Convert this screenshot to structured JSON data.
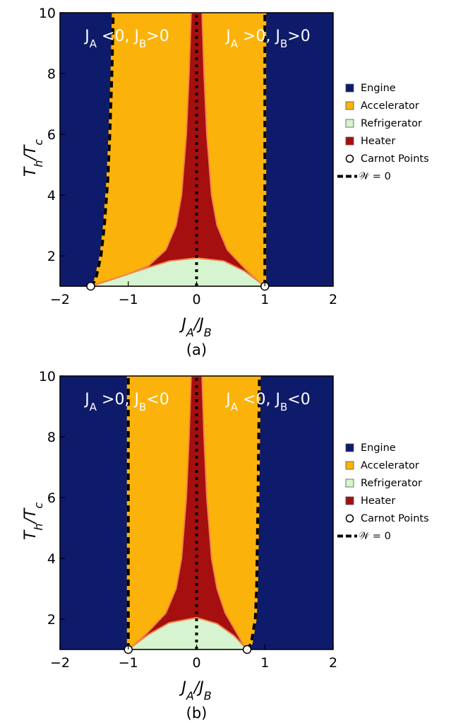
{
  "colors": {
    "engine": "#0e1b6b",
    "accelerator": "#fbb20a",
    "refrigerator": "#d6f4cf",
    "heater": "#a50f0f",
    "boundary": "#f0854a"
  },
  "chart_data": [
    {
      "type": "area",
      "panel_label": "(a)",
      "xlabel": "J_A/J_B",
      "ylabel": "T_h/T_c",
      "xlim": [
        -2,
        2
      ],
      "ylim": [
        1,
        10
      ],
      "x_ticks": [
        "−2",
        "−1",
        "0",
        "1",
        "2"
      ],
      "y_ticks": [
        "2",
        "4",
        "6",
        "8",
        "10"
      ],
      "region_labels": {
        "left": [
          "J",
          "A",
          " <0, J",
          "B",
          ">0"
        ],
        "right": [
          "J",
          "A",
          " >0, J",
          "B",
          ">0"
        ]
      },
      "legend": {
        "placement": "right",
        "entries": [
          "Engine",
          "Accelerator",
          "Refrigerator",
          "Heater",
          "Carnot Points",
          "𝒲 = 0"
        ]
      },
      "carnot_points": [
        [
          -1.55,
          1
        ],
        [
          1.0,
          1
        ]
      ],
      "work_zero_left": [
        [
          -1.55,
          1.0
        ],
        [
          -1.48,
          1.2
        ],
        [
          -1.4,
          2.0
        ],
        [
          -1.35,
          3.0
        ],
        [
          -1.3,
          4.5
        ],
        [
          -1.27,
          6.0
        ],
        [
          -1.24,
          8.0
        ],
        [
          -1.22,
          10.0
        ]
      ],
      "work_zero_right": [
        [
          1.0,
          1.0
        ],
        [
          1.0,
          10.0
        ]
      ],
      "refrigerator_top": [
        [
          -1.55,
          1.0
        ],
        [
          -1.2,
          1.25
        ],
        [
          -0.8,
          1.55
        ],
        [
          -0.4,
          1.83
        ],
        [
          0.0,
          1.93
        ],
        [
          0.4,
          1.83
        ],
        [
          0.7,
          1.5
        ],
        [
          1.0,
          1.0
        ]
      ],
      "heater_left": [
        [
          -1.52,
          1.03
        ],
        [
          -1.0,
          1.4
        ],
        [
          -0.7,
          1.68
        ],
        [
          -0.45,
          2.2
        ],
        [
          -0.3,
          3.0
        ],
        [
          -0.22,
          4.0
        ],
        [
          -0.15,
          6.0
        ],
        [
          -0.11,
          8.0
        ],
        [
          -0.08,
          10.0
        ]
      ],
      "heater_right": [
        [
          0.08,
          10.0
        ],
        [
          0.11,
          8.0
        ],
        [
          0.15,
          6.0
        ],
        [
          0.22,
          4.0
        ],
        [
          0.3,
          3.0
        ],
        [
          0.45,
          2.2
        ],
        [
          0.7,
          1.6
        ],
        [
          0.97,
          1.03
        ]
      ]
    },
    {
      "type": "area",
      "panel_label": "(b)",
      "xlabel": "J_A/J_B",
      "ylabel": "T_h/T_c",
      "xlim": [
        -2,
        2
      ],
      "ylim": [
        1,
        10
      ],
      "x_ticks": [
        "−2",
        "−1",
        "0",
        "1",
        "2"
      ],
      "y_ticks": [
        "2",
        "4",
        "6",
        "8",
        "10"
      ],
      "region_labels": {
        "left": [
          "J",
          "A",
          " >0, J",
          "B",
          "<0"
        ],
        "right": [
          "J",
          "A",
          " <0, J",
          "B",
          "<0"
        ]
      },
      "legend": {
        "placement": "right",
        "entries": [
          "Engine",
          "Accelerator",
          "Refrigerator",
          "Heater",
          "Carnot Points",
          "𝒲 = 0"
        ]
      },
      "carnot_points": [
        [
          -1.0,
          1
        ],
        [
          0.74,
          1
        ]
      ],
      "work_zero_left": [
        [
          -1.0,
          1.0
        ],
        [
          -1.0,
          10.0
        ]
      ],
      "work_zero_right": [
        [
          0.74,
          1.0
        ],
        [
          0.8,
          1.2
        ],
        [
          0.86,
          2.0
        ],
        [
          0.88,
          3.0
        ],
        [
          0.89,
          4.5
        ],
        [
          0.9,
          6.0
        ],
        [
          0.91,
          8.0
        ],
        [
          0.92,
          10.0
        ]
      ],
      "refrigerator_top": [
        [
          -1.0,
          1.0
        ],
        [
          -0.7,
          1.5
        ],
        [
          -0.4,
          1.88
        ],
        [
          0.0,
          2.05
        ],
        [
          0.3,
          1.85
        ],
        [
          0.55,
          1.45
        ],
        [
          0.74,
          1.0
        ]
      ],
      "heater_left": [
        [
          -0.97,
          1.03
        ],
        [
          -0.7,
          1.6
        ],
        [
          -0.45,
          2.2
        ],
        [
          -0.3,
          3.0
        ],
        [
          -0.22,
          4.0
        ],
        [
          -0.15,
          6.0
        ],
        [
          -0.11,
          8.0
        ],
        [
          -0.08,
          10.0
        ]
      ],
      "heater_right": [
        [
          0.08,
          10.0
        ],
        [
          0.11,
          8.0
        ],
        [
          0.15,
          6.0
        ],
        [
          0.22,
          4.0
        ],
        [
          0.3,
          3.0
        ],
        [
          0.42,
          2.2
        ],
        [
          0.6,
          1.5
        ],
        [
          0.72,
          1.03
        ]
      ]
    }
  ]
}
